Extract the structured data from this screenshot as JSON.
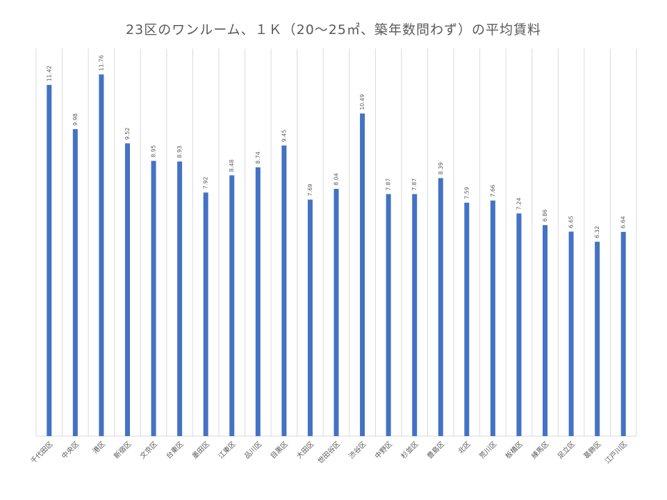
{
  "chart_data": {
    "type": "bar",
    "title": "23区のワンルーム、１Ｋ（20～25㎡、築年数問わず）の平均賃料",
    "xlabel": "",
    "ylabel": "",
    "categories": [
      "千代田区",
      "中央区",
      "港区",
      "新宿区",
      "文京区",
      "台東区",
      "墨田区",
      "江東区",
      "品川区",
      "目黒区",
      "大田区",
      "世田谷区",
      "渋谷区",
      "中野区",
      "杉並区",
      "豊島区",
      "北区",
      "荒川区",
      "板橋区",
      "練馬区",
      "足立区",
      "葛飾区",
      "江戸川区"
    ],
    "values": [
      11.42,
      9.98,
      11.76,
      9.52,
      8.95,
      8.93,
      7.92,
      8.48,
      8.74,
      9.45,
      7.69,
      8.04,
      10.49,
      7.87,
      7.87,
      8.39,
      7.59,
      7.66,
      7.24,
      6.86,
      6.65,
      6.32,
      6.64
    ],
    "value_labels": [
      "11.42",
      "9.98",
      "11.76",
      "9.52",
      "8.95",
      "8.93",
      "7.92",
      "8.48",
      "8.74",
      "9.45",
      "7.69",
      "8.04",
      "10.49",
      "7.87",
      "7.87",
      "8.39",
      "7.59",
      "7.66",
      "7.24",
      "6.86",
      "6.65",
      "6.32",
      "6.64"
    ],
    "ylim": [
      0,
      12.6
    ],
    "grid": "vertical",
    "bar_color": "#4472c4",
    "grid_color": "#d9d9d9",
    "text_color": "#595959"
  }
}
